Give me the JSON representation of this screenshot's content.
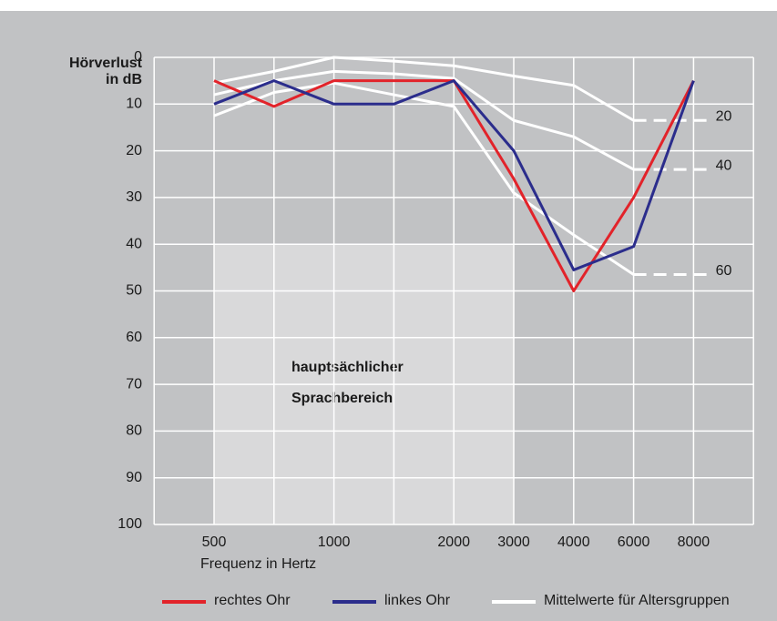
{
  "chart_data": {
    "type": "line",
    "y_label": [
      "Hörverlust",
      "in dB"
    ],
    "x_label": "Frequenz in Hertz",
    "categories": [
      "500",
      null,
      "1000",
      null,
      "2000",
      "3000",
      "4000",
      "6000",
      "8000"
    ],
    "ylim": [
      0,
      100
    ],
    "y_inverted": true,
    "yticks": [
      0,
      10,
      20,
      30,
      40,
      50,
      60,
      70,
      80,
      90,
      100
    ],
    "grid": true,
    "series": [
      {
        "name": "rechtes Ohr",
        "color": "#e2232a",
        "values": [
          5,
          10.5,
          5,
          5,
          5,
          26,
          50,
          30,
          5
        ]
      },
      {
        "name": "linkes Ohr",
        "color": "#2b2d8c",
        "values": [
          10,
          5,
          10,
          10,
          5,
          20,
          45.5,
          40.5,
          5
        ]
      }
    ],
    "age_groups": {
      "name": "Mittelwerte für Altersgruppen",
      "color": "#ffffff",
      "lines": [
        {
          "label": "20",
          "values": [
            5.5,
            3,
            0,
            0.8,
            1.8,
            4,
            6,
            13.5,
            null
          ]
        },
        {
          "label": "40",
          "values": [
            8,
            5,
            3,
            3.5,
            4.5,
            13.5,
            17,
            24,
            null
          ]
        },
        {
          "label": "60",
          "values": [
            12.5,
            7.5,
            5.5,
            8,
            10.5,
            29,
            38,
            46.5,
            null
          ]
        }
      ]
    },
    "shaded_region": {
      "x_from": "500",
      "x_to": "3000",
      "y_from": 40,
      "y_to": 100,
      "color": "#d9d9da",
      "text": [
        "hauptsächlicher",
        "Sprachbereich"
      ]
    }
  }
}
